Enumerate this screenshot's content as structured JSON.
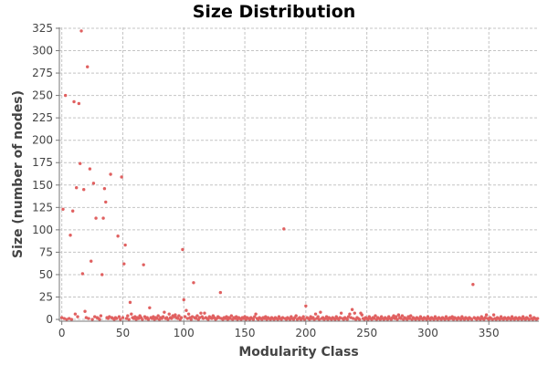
{
  "chart_data": {
    "type": "scatter",
    "title": "Size Distribution",
    "xlabel": "Modularity Class",
    "ylabel": "Size (number of nodes)",
    "xlim": [
      -2,
      391
    ],
    "ylim": [
      -2,
      326
    ],
    "x_ticks": [
      0,
      50,
      100,
      150,
      200,
      250,
      300,
      350
    ],
    "y_ticks": [
      0,
      25,
      50,
      75,
      100,
      125,
      150,
      175,
      200,
      225,
      250,
      275,
      300,
      325
    ],
    "grid": true,
    "legend": "none",
    "point_color": "#e06060",
    "points": [
      [
        1,
        123
      ],
      [
        3,
        250
      ],
      [
        7,
        94
      ],
      [
        9,
        121
      ],
      [
        10,
        243
      ],
      [
        12,
        147
      ],
      [
        14,
        241
      ],
      [
        15,
        174
      ],
      [
        16,
        322
      ],
      [
        17,
        51
      ],
      [
        18,
        145
      ],
      [
        21,
        282
      ],
      [
        23,
        168
      ],
      [
        24,
        65
      ],
      [
        26,
        152
      ],
      [
        28,
        113
      ],
      [
        33,
        50
      ],
      [
        34,
        113
      ],
      [
        35,
        146
      ],
      [
        36,
        131
      ],
      [
        40,
        162
      ],
      [
        46,
        93
      ],
      [
        49,
        159
      ],
      [
        51,
        62
      ],
      [
        52,
        83
      ],
      [
        56,
        19
      ],
      [
        67,
        61
      ],
      [
        72,
        13
      ],
      [
        99,
        78
      ],
      [
        100,
        22
      ],
      [
        102,
        10
      ],
      [
        108,
        41
      ],
      [
        130,
        30
      ],
      [
        182,
        101
      ],
      [
        200,
        15
      ],
      [
        238,
        11
      ],
      [
        337,
        39
      ],
      [
        0,
        2
      ],
      [
        2,
        1
      ],
      [
        4,
        0
      ],
      [
        6,
        1
      ],
      [
        8,
        0
      ],
      [
        11,
        6
      ],
      [
        13,
        3
      ],
      [
        19,
        9
      ],
      [
        20,
        2
      ],
      [
        22,
        1
      ],
      [
        25,
        0
      ],
      [
        27,
        3
      ],
      [
        29,
        2
      ],
      [
        30,
        1
      ],
      [
        31,
        0
      ],
      [
        32,
        4
      ],
      [
        37,
        2
      ],
      [
        38,
        1
      ],
      [
        39,
        3
      ],
      [
        41,
        2
      ],
      [
        42,
        1
      ],
      [
        43,
        0
      ],
      [
        44,
        2
      ],
      [
        45,
        1
      ],
      [
        47,
        3
      ],
      [
        48,
        0
      ],
      [
        50,
        2
      ],
      [
        53,
        1
      ],
      [
        54,
        4
      ],
      [
        55,
        0
      ],
      [
        57,
        6
      ],
      [
        58,
        2
      ],
      [
        59,
        1
      ],
      [
        60,
        3
      ],
      [
        61,
        0
      ],
      [
        62,
        2
      ],
      [
        63,
        1
      ],
      [
        64,
        4
      ],
      [
        65,
        2
      ],
      [
        66,
        0
      ],
      [
        68,
        3
      ],
      [
        69,
        1
      ],
      [
        70,
        2
      ],
      [
        71,
        0
      ],
      [
        73,
        2
      ],
      [
        74,
        1
      ],
      [
        75,
        3
      ],
      [
        76,
        0
      ],
      [
        77,
        2
      ],
      [
        78,
        1
      ],
      [
        79,
        4
      ],
      [
        80,
        0
      ],
      [
        81,
        2
      ],
      [
        82,
        1
      ],
      [
        83,
        3
      ],
      [
        84,
        8
      ],
      [
        85,
        1
      ],
      [
        86,
        2
      ],
      [
        87,
        0
      ],
      [
        88,
        6
      ],
      [
        89,
        2
      ],
      [
        90,
        1
      ],
      [
        91,
        4
      ],
      [
        92,
        3
      ],
      [
        93,
        5
      ],
      [
        94,
        2
      ],
      [
        95,
        1
      ],
      [
        96,
        4
      ],
      [
        97,
        0
      ],
      [
        98,
        2
      ],
      [
        101,
        3
      ],
      [
        103,
        1
      ],
      [
        104,
        6
      ],
      [
        105,
        2
      ],
      [
        106,
        0
      ],
      [
        107,
        3
      ],
      [
        109,
        2
      ],
      [
        110,
        1
      ],
      [
        111,
        4
      ],
      [
        112,
        0
      ],
      [
        113,
        2
      ],
      [
        114,
        7
      ],
      [
        115,
        3
      ],
      [
        116,
        1
      ],
      [
        117,
        7
      ],
      [
        118,
        2
      ],
      [
        119,
        1
      ],
      [
        120,
        0
      ],
      [
        121,
        3
      ],
      [
        122,
        2
      ],
      [
        123,
        1
      ],
      [
        124,
        4
      ],
      [
        125,
        2
      ],
      [
        126,
        0
      ],
      [
        127,
        1
      ],
      [
        128,
        3
      ],
      [
        129,
        2
      ],
      [
        131,
        1
      ],
      [
        132,
        0
      ],
      [
        133,
        2
      ],
      [
        134,
        1
      ],
      [
        135,
        3
      ],
      [
        136,
        0
      ],
      [
        137,
        2
      ],
      [
        138,
        1
      ],
      [
        139,
        4
      ],
      [
        140,
        0
      ],
      [
        141,
        2
      ],
      [
        142,
        1
      ],
      [
        143,
        3
      ],
      [
        144,
        0
      ],
      [
        145,
        2
      ],
      [
        146,
        1
      ],
      [
        147,
        0
      ],
      [
        148,
        2
      ],
      [
        149,
        1
      ],
      [
        150,
        3
      ],
      [
        151,
        0
      ],
      [
        152,
        2
      ],
      [
        153,
        1
      ],
      [
        154,
        0
      ],
      [
        155,
        2
      ],
      [
        156,
        1
      ],
      [
        157,
        0
      ],
      [
        158,
        3
      ],
      [
        159,
        6
      ],
      [
        160,
        1
      ],
      [
        161,
        0
      ],
      [
        162,
        2
      ],
      [
        163,
        1
      ],
      [
        164,
        0
      ],
      [
        165,
        2
      ],
      [
        166,
        1
      ],
      [
        167,
        3
      ],
      [
        168,
        0
      ],
      [
        169,
        2
      ],
      [
        170,
        1
      ],
      [
        171,
        0
      ],
      [
        172,
        2
      ],
      [
        173,
        1
      ],
      [
        174,
        0
      ],
      [
        175,
        2
      ],
      [
        176,
        1
      ],
      [
        177,
        0
      ],
      [
        178,
        3
      ],
      [
        179,
        1
      ],
      [
        180,
        0
      ],
      [
        181,
        2
      ],
      [
        183,
        1
      ],
      [
        184,
        0
      ],
      [
        185,
        2
      ],
      [
        186,
        1
      ],
      [
        187,
        0
      ],
      [
        188,
        3
      ],
      [
        189,
        1
      ],
      [
        190,
        0
      ],
      [
        191,
        2
      ],
      [
        192,
        4
      ],
      [
        193,
        0
      ],
      [
        194,
        1
      ],
      [
        195,
        2
      ],
      [
        196,
        0
      ],
      [
        197,
        1
      ],
      [
        198,
        3
      ],
      [
        199,
        0
      ],
      [
        201,
        2
      ],
      [
        202,
        1
      ],
      [
        203,
        0
      ],
      [
        204,
        3
      ],
      [
        205,
        1
      ],
      [
        206,
        2
      ],
      [
        207,
        0
      ],
      [
        208,
        6
      ],
      [
        209,
        1
      ],
      [
        210,
        3
      ],
      [
        211,
        0
      ],
      [
        212,
        8
      ],
      [
        213,
        1
      ],
      [
        214,
        2
      ],
      [
        215,
        0
      ],
      [
        216,
        1
      ],
      [
        217,
        3
      ],
      [
        218,
        0
      ],
      [
        219,
        2
      ],
      [
        220,
        1
      ],
      [
        221,
        0
      ],
      [
        222,
        2
      ],
      [
        223,
        1
      ],
      [
        224,
        0
      ],
      [
        225,
        3
      ],
      [
        226,
        1
      ],
      [
        227,
        0
      ],
      [
        228,
        2
      ],
      [
        229,
        7
      ],
      [
        230,
        1
      ],
      [
        231,
        0
      ],
      [
        232,
        2
      ],
      [
        233,
        1
      ],
      [
        234,
        0
      ],
      [
        235,
        3
      ],
      [
        236,
        6
      ],
      [
        237,
        2
      ],
      [
        239,
        1
      ],
      [
        240,
        7
      ],
      [
        241,
        0
      ],
      [
        242,
        2
      ],
      [
        243,
        1
      ],
      [
        244,
        0
      ],
      [
        245,
        7
      ],
      [
        246,
        5
      ],
      [
        247,
        1
      ],
      [
        248,
        0
      ],
      [
        249,
        2
      ],
      [
        250,
        1
      ],
      [
        251,
        0
      ],
      [
        252,
        3
      ],
      [
        253,
        1
      ],
      [
        254,
        0
      ],
      [
        255,
        2
      ],
      [
        256,
        1
      ],
      [
        257,
        4
      ],
      [
        258,
        0
      ],
      [
        259,
        2
      ],
      [
        260,
        1
      ],
      [
        261,
        0
      ],
      [
        262,
        3
      ],
      [
        263,
        1
      ],
      [
        264,
        0
      ],
      [
        265,
        2
      ],
      [
        266,
        1
      ],
      [
        267,
        0
      ],
      [
        268,
        3
      ],
      [
        269,
        1
      ],
      [
        270,
        0
      ],
      [
        271,
        2
      ],
      [
        272,
        4
      ],
      [
        273,
        1
      ],
      [
        274,
        3
      ],
      [
        275,
        0
      ],
      [
        276,
        5
      ],
      [
        277,
        2
      ],
      [
        278,
        1
      ],
      [
        279,
        4
      ],
      [
        280,
        0
      ],
      [
        281,
        2
      ],
      [
        282,
        1
      ],
      [
        283,
        0
      ],
      [
        284,
        3
      ],
      [
        285,
        1
      ],
      [
        286,
        4
      ],
      [
        287,
        0
      ],
      [
        288,
        2
      ],
      [
        289,
        1
      ],
      [
        290,
        0
      ],
      [
        291,
        2
      ],
      [
        292,
        1
      ],
      [
        293,
        0
      ],
      [
        294,
        3
      ],
      [
        295,
        1
      ],
      [
        296,
        0
      ],
      [
        297,
        2
      ],
      [
        298,
        1
      ],
      [
        299,
        0
      ],
      [
        300,
        3
      ],
      [
        301,
        1
      ],
      [
        302,
        0
      ],
      [
        303,
        2
      ],
      [
        304,
        1
      ],
      [
        305,
        0
      ],
      [
        306,
        3
      ],
      [
        307,
        1
      ],
      [
        308,
        0
      ],
      [
        309,
        2
      ],
      [
        310,
        1
      ],
      [
        311,
        0
      ],
      [
        312,
        2
      ],
      [
        313,
        1
      ],
      [
        314,
        0
      ],
      [
        315,
        3
      ],
      [
        316,
        1
      ],
      [
        317,
        0
      ],
      [
        318,
        2
      ],
      [
        319,
        1
      ],
      [
        320,
        3
      ],
      [
        321,
        0
      ],
      [
        322,
        2
      ],
      [
        323,
        1
      ],
      [
        324,
        0
      ],
      [
        325,
        2
      ],
      [
        326,
        1
      ],
      [
        327,
        0
      ],
      [
        328,
        3
      ],
      [
        329,
        1
      ],
      [
        330,
        0
      ],
      [
        331,
        2
      ],
      [
        332,
        1
      ],
      [
        333,
        0
      ],
      [
        334,
        2
      ],
      [
        335,
        1
      ],
      [
        336,
        0
      ],
      [
        338,
        2
      ],
      [
        339,
        1
      ],
      [
        340,
        0
      ],
      [
        341,
        2
      ],
      [
        342,
        1
      ],
      [
        343,
        0
      ],
      [
        344,
        3
      ],
      [
        345,
        1
      ],
      [
        346,
        0
      ],
      [
        347,
        2
      ],
      [
        348,
        5
      ],
      [
        349,
        1
      ],
      [
        350,
        0
      ],
      [
        351,
        2
      ],
      [
        352,
        1
      ],
      [
        353,
        0
      ],
      [
        354,
        5
      ],
      [
        355,
        1
      ],
      [
        356,
        0
      ],
      [
        357,
        2
      ],
      [
        358,
        1
      ],
      [
        359,
        0
      ],
      [
        360,
        3
      ],
      [
        361,
        1
      ],
      [
        362,
        0
      ],
      [
        363,
        2
      ],
      [
        364,
        1
      ],
      [
        365,
        0
      ],
      [
        366,
        2
      ],
      [
        367,
        1
      ],
      [
        368,
        0
      ],
      [
        369,
        3
      ],
      [
        370,
        1
      ],
      [
        371,
        0
      ],
      [
        372,
        2
      ],
      [
        373,
        1
      ],
      [
        374,
        0
      ],
      [
        375,
        2
      ],
      [
        376,
        1
      ],
      [
        377,
        0
      ],
      [
        378,
        3
      ],
      [
        379,
        1
      ],
      [
        380,
        0
      ],
      [
        381,
        2
      ],
      [
        382,
        1
      ],
      [
        383,
        0
      ],
      [
        384,
        4
      ],
      [
        385,
        1
      ],
      [
        386,
        0
      ],
      [
        387,
        2
      ],
      [
        388,
        1
      ],
      [
        389,
        0
      ],
      [
        390,
        1
      ]
    ]
  }
}
